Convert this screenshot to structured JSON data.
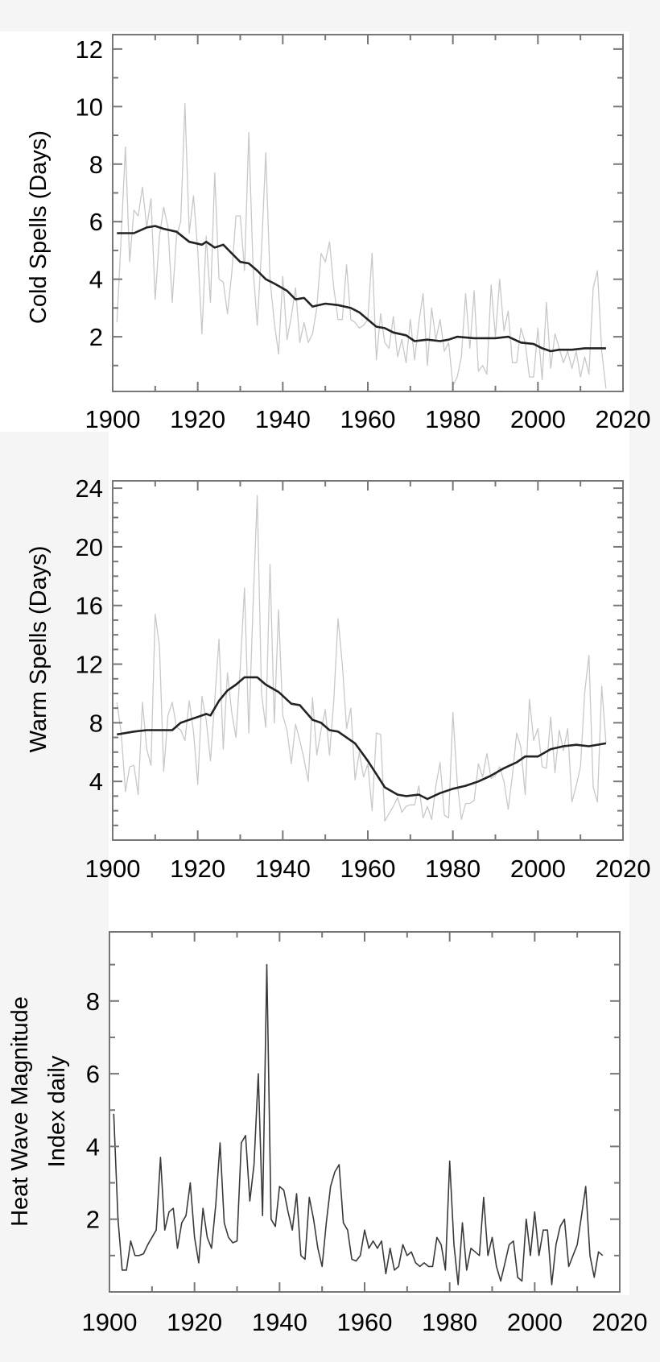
{
  "chart_data": [
    {
      "type": "line",
      "ylabel": "Cold Spells (Days)",
      "xlim": [
        1900,
        2020
      ],
      "ylim": [
        0.1,
        12.5
      ],
      "xticks": [
        1900,
        1920,
        1940,
        1960,
        1980,
        2000,
        2020
      ],
      "yticks": [
        2,
        4,
        6,
        8,
        10,
        12
      ],
      "grid": false,
      "colors": {
        "annual": "#c8c8c8",
        "smoothed": "#222222",
        "frame": "#777777"
      },
      "series": [
        {
          "role": "annual",
          "x_start": 1901,
          "values": [
            2.5,
            5.5,
            8.6,
            4.6,
            6.4,
            6.2,
            7.2,
            5.8,
            6.8,
            3.3,
            5.5,
            6.5,
            5.8,
            3.2,
            5.5,
            6.0,
            10.1,
            5.6,
            6.9,
            5.0,
            2.1,
            5.5,
            3.2,
            7.7,
            4.0,
            3.9,
            2.8,
            4.2,
            6.2,
            6.2,
            4.3,
            9.1,
            4.4,
            2.4,
            5.0,
            8.4,
            4.0,
            2.5,
            1.4,
            4.1,
            1.9,
            2.7,
            3.7,
            1.8,
            2.5,
            1.8,
            2.1,
            3.0,
            4.9,
            4.6,
            5.3,
            3.7,
            2.6,
            2.6,
            4.5,
            2.6,
            2.5,
            2.3,
            2.4,
            2.6,
            4.9,
            1.2,
            2.8,
            1.8,
            1.6,
            2.7,
            1.3,
            1.9,
            1.1,
            2.6,
            1.2,
            2.5,
            3.5,
            1.0,
            3.0,
            1.9,
            2.6,
            1.5,
            1.8,
            0.3,
            0.6,
            1.3,
            3.5,
            1.6,
            3.6,
            0.8,
            1.0,
            0.7,
            3.8,
            2.0,
            4.0,
            2.2,
            2.9,
            1.1,
            1.1,
            2.3,
            1.8,
            0.6,
            0.6,
            2.3,
            0.5,
            3.2,
            0.9,
            2.1,
            1.6,
            1.1,
            1.5,
            0.9,
            1.5,
            0.6,
            1.3,
            0.7,
            3.7,
            4.3,
            1.5,
            0.2
          ]
        },
        {
          "role": "smoothed",
          "x": [
            1901,
            1905,
            1908,
            1910,
            1912,
            1915,
            1918,
            1921,
            1922,
            1924,
            1926,
            1928,
            1930,
            1932,
            1934,
            1936,
            1938,
            1941,
            1943,
            1945,
            1947,
            1950,
            1953,
            1956,
            1958,
            1960,
            1962,
            1964,
            1966,
            1969,
            1971,
            1974,
            1977,
            1979,
            1981,
            1985,
            1990,
            1993,
            1996,
            1999,
            2001,
            2003,
            2005,
            2008,
            2011,
            2016
          ],
          "values": [
            5.6,
            5.6,
            5.8,
            5.85,
            5.75,
            5.65,
            5.3,
            5.2,
            5.3,
            5.1,
            5.2,
            4.9,
            4.6,
            4.55,
            4.3,
            4.0,
            3.85,
            3.6,
            3.3,
            3.35,
            3.05,
            3.15,
            3.1,
            3.0,
            2.85,
            2.6,
            2.35,
            2.3,
            2.15,
            2.05,
            1.85,
            1.9,
            1.85,
            1.9,
            2.0,
            1.95,
            1.95,
            2.0,
            1.8,
            1.75,
            1.6,
            1.5,
            1.55,
            1.55,
            1.6,
            1.6
          ]
        }
      ]
    },
    {
      "type": "line",
      "ylabel": "Warm Spells (Days)",
      "xlim": [
        1900,
        2020
      ],
      "ylim": [
        0,
        24.5
      ],
      "xticks": [
        1900,
        1920,
        1940,
        1960,
        1980,
        2000,
        2020
      ],
      "yticks": [
        4,
        8,
        12,
        16,
        20,
        24
      ],
      "grid": false,
      "colors": {
        "annual": "#c8c8c8",
        "smoothed": "#222222",
        "frame": "#777777"
      },
      "series": [
        {
          "role": "annual",
          "x_start": 1901,
          "values": [
            9.4,
            7.3,
            3.3,
            5.0,
            5.1,
            3.1,
            9.4,
            6.2,
            5.1,
            15.4,
            13.2,
            4.7,
            8.5,
            9.4,
            7.7,
            7.5,
            6.8,
            9.5,
            7.4,
            3.8,
            9.8,
            8.2,
            5.4,
            9.5,
            13.7,
            6.2,
            11.4,
            8.7,
            7.0,
            11.8,
            17.2,
            7.3,
            16.0,
            23.5,
            10.0,
            7.7,
            18.8,
            8.0,
            15.7,
            8.5,
            7.5,
            5.2,
            7.9,
            6.8,
            5.5,
            4.0,
            9.7,
            5.8,
            7.5,
            8.9,
            5.8,
            9.5,
            15.1,
            12.0,
            7.6,
            9.0,
            4.1,
            6.0,
            4.3,
            5.2,
            2.0,
            7.3,
            7.2,
            1.3,
            1.8,
            2.3,
            2.9,
            1.9,
            2.3,
            2.4,
            2.4,
            3.7,
            1.5,
            2.3,
            1.4,
            3.7,
            5.3,
            1.7,
            1.5,
            8.7,
            4.0,
            1.4,
            2.5,
            2.5,
            2.7,
            5.2,
            4.3,
            5.9,
            4.2,
            4.4,
            5.0,
            4.0,
            2.1,
            4.4,
            7.3,
            6.3,
            3.1,
            9.6,
            6.8,
            7.6,
            5.0,
            4.9,
            8.4,
            4.6,
            7.5,
            6.1,
            7.6,
            2.6,
            3.7,
            5.0,
            10.1,
            12.6,
            3.6,
            2.6,
            10.5,
            6.6
          ]
        },
        {
          "role": "smoothed",
          "x": [
            1901,
            1905,
            1908,
            1912,
            1914,
            1916,
            1918,
            1920,
            1922,
            1923,
            1925,
            1927,
            1929,
            1931,
            1934,
            1936,
            1939,
            1942,
            1944,
            1947,
            1949,
            1951,
            1953,
            1957,
            1960,
            1962,
            1964,
            1967,
            1969,
            1972,
            1974,
            1977,
            1980,
            1983,
            1986,
            1989,
            1992,
            1995,
            1997,
            2000,
            2003,
            2006,
            2009,
            2012,
            2016
          ],
          "values": [
            7.2,
            7.4,
            7.5,
            7.5,
            7.5,
            8.0,
            8.2,
            8.4,
            8.6,
            8.5,
            9.5,
            10.2,
            10.6,
            11.1,
            11.1,
            10.6,
            10.1,
            9.3,
            9.2,
            8.2,
            8.0,
            7.5,
            7.4,
            6.6,
            5.4,
            4.5,
            3.6,
            3.1,
            3.0,
            3.1,
            2.8,
            3.2,
            3.5,
            3.7,
            4.0,
            4.4,
            4.9,
            5.3,
            5.7,
            5.7,
            6.2,
            6.4,
            6.5,
            6.4,
            6.6
          ]
        }
      ]
    },
    {
      "type": "line",
      "ylabel": "Heat Wave Magnitude",
      "ylabel_line2": "Index daily",
      "xlim": [
        1900,
        2020
      ],
      "ylim": [
        0,
        9.9
      ],
      "xticks": [
        1900,
        1920,
        1940,
        1960,
        1980,
        2000,
        2020
      ],
      "yticks": [
        2,
        4,
        6,
        8
      ],
      "grid": false,
      "colors": {
        "annual": "#3a3a3a",
        "frame": "#777777"
      },
      "series": [
        {
          "role": "annual",
          "x_start": 1901,
          "values": [
            4.9,
            2.0,
            0.6,
            0.6,
            1.4,
            1.0,
            1.0,
            1.05,
            1.3,
            1.5,
            1.7,
            3.7,
            1.7,
            2.2,
            2.3,
            1.2,
            1.9,
            2.1,
            3.0,
            1.5,
            0.8,
            2.3,
            1.5,
            1.2,
            2.4,
            4.1,
            1.9,
            1.5,
            1.35,
            1.4,
            4.1,
            4.3,
            2.5,
            3.5,
            6.0,
            2.1,
            9.0,
            2.0,
            1.8,
            2.9,
            2.8,
            2.2,
            1.7,
            2.7,
            1.0,
            0.9,
            2.6,
            2.0,
            1.2,
            0.7,
            1.9,
            2.9,
            3.3,
            3.5,
            1.9,
            1.7,
            0.9,
            0.85,
            1.0,
            1.7,
            1.2,
            1.4,
            1.2,
            1.4,
            0.5,
            1.2,
            0.6,
            0.7,
            1.3,
            1.0,
            1.1,
            0.8,
            0.7,
            0.8,
            0.7,
            0.7,
            1.5,
            1.3,
            0.6,
            3.6,
            1.3,
            0.2,
            1.9,
            0.6,
            1.2,
            1.1,
            1.0,
            2.6,
            1.0,
            1.5,
            0.7,
            0.3,
            0.8,
            1.3,
            1.4,
            0.4,
            0.3,
            2.0,
            1.0,
            2.2,
            1.0,
            1.7,
            1.7,
            0.2,
            1.3,
            1.8,
            2.0,
            0.7,
            1.0,
            1.3,
            2.1,
            2.9,
            1.0,
            0.4,
            1.1,
            1.0
          ]
        }
      ]
    }
  ]
}
